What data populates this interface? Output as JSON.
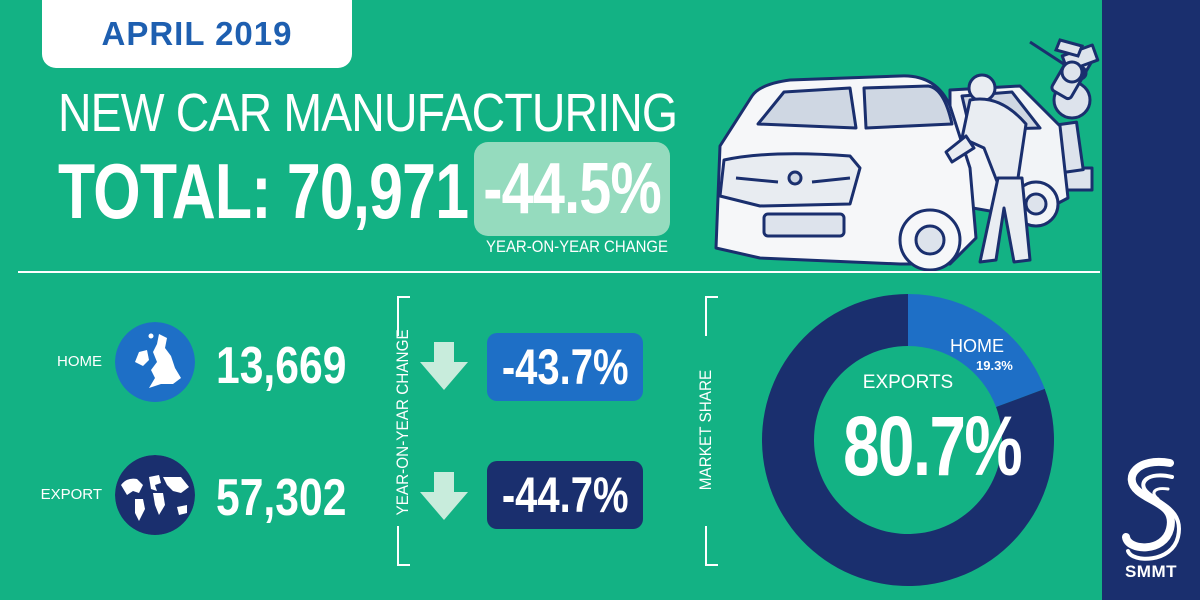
{
  "date_tab": "APRIL 2019",
  "headline": "NEW CAR MANUFACTURING",
  "total_text": "TOTAL: 70,971",
  "total_change": "-44.5%",
  "total_change_caption": "YEAR-ON-YEAR CHANGE",
  "rows": [
    {
      "label": "HOME",
      "value": "13,669",
      "change": "-43.7%",
      "box_color": "#1e6fc6"
    },
    {
      "label": "EXPORT",
      "value": "57,302",
      "change": "-44.7%",
      "box_color": "#1a2f6e"
    }
  ],
  "yoy_bracket_label": "YEAR-ON-YEAR CHANGE",
  "market_share_label": "MARKET SHARE",
  "brand": "SMMT",
  "colors": {
    "background": "#13b284",
    "navy": "#1a2f6e",
    "blue": "#1e6fc6",
    "light_green": "#95dbbe"
  },
  "chart_data": {
    "type": "pie",
    "categories": [
      "HOME",
      "EXPORTS"
    ],
    "values": [
      19.3,
      80.7
    ],
    "value_labels": [
      "19.3%",
      "80.7%"
    ],
    "colors": [
      "#1e6fc6",
      "#1a2f6e"
    ],
    "donut": true
  }
}
